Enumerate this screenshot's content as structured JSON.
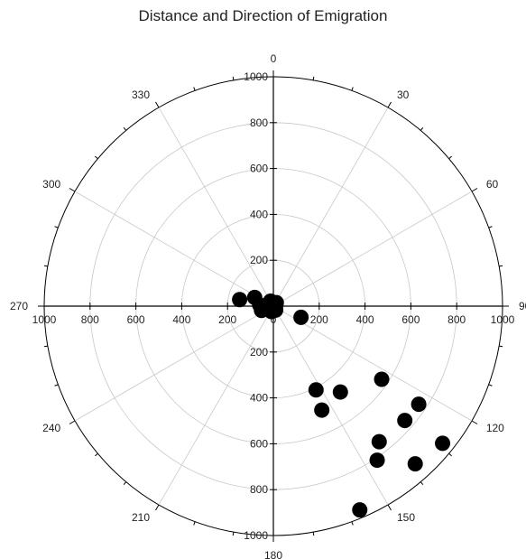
{
  "chart_data": {
    "type": "scatter",
    "projection": "polar",
    "title": "Distance and Direction of Emigration",
    "radial_range": [
      0,
      1000
    ],
    "radial_ticks": [
      200,
      400,
      600,
      800,
      1000
    ],
    "radial_tick_labels": [
      "200",
      "400",
      "600",
      "800",
      "1000"
    ],
    "axis_cross_labels": {
      "north": [
        "1000",
        "800",
        "600",
        "400",
        "200",
        "0"
      ],
      "south": [
        "200",
        "400",
        "600",
        "800",
        "1000"
      ],
      "west": [
        "1000",
        "800",
        "600",
        "400",
        "200",
        "0"
      ],
      "east": [
        "200",
        "400",
        "600",
        "800",
        "1000"
      ]
    },
    "angular_ticks": [
      0,
      30,
      60,
      90,
      120,
      150,
      180,
      210,
      240,
      270,
      300,
      330
    ],
    "angular_tick_labels": [
      "0",
      "30",
      "60",
      "90",
      "120",
      "150",
      "180",
      "210",
      "240",
      "270",
      "300",
      "330"
    ],
    "angle_direction": "clockwise",
    "zero_location": "top",
    "grid": true,
    "marker_color": "#000000",
    "grid_color": "#c8c8c8",
    "axis_color": "#000000",
    "points": [
      {
        "theta": 112,
        "r": 130
      },
      {
        "theta": 153,
        "r": 410
      },
      {
        "theta": 155,
        "r": 500
      },
      {
        "theta": 142,
        "r": 475
      },
      {
        "theta": 124,
        "r": 570
      },
      {
        "theta": 142,
        "r": 750
      },
      {
        "theta": 131,
        "r": 760
      },
      {
        "theta": 138,
        "r": 925
      },
      {
        "theta": 146,
        "r": 810
      },
      {
        "theta": 129,
        "r": 950
      },
      {
        "theta": 124,
        "r": 765
      },
      {
        "theta": 157,
        "r": 965
      },
      {
        "theta": 281,
        "r": 150
      },
      {
        "theta": 295,
        "r": 90
      },
      {
        "theta": 275,
        "r": 60
      },
      {
        "theta": 250,
        "r": 55
      },
      {
        "theta": 330,
        "r": 25
      },
      {
        "theta": 270,
        "r": 25
      },
      {
        "theta": 200,
        "r": 25
      },
      {
        "theta": 40,
        "r": 20
      },
      {
        "theta": 150,
        "r": 20
      },
      {
        "theta": 100,
        "r": 10
      },
      {
        "theta": 0,
        "r": 0
      }
    ]
  }
}
